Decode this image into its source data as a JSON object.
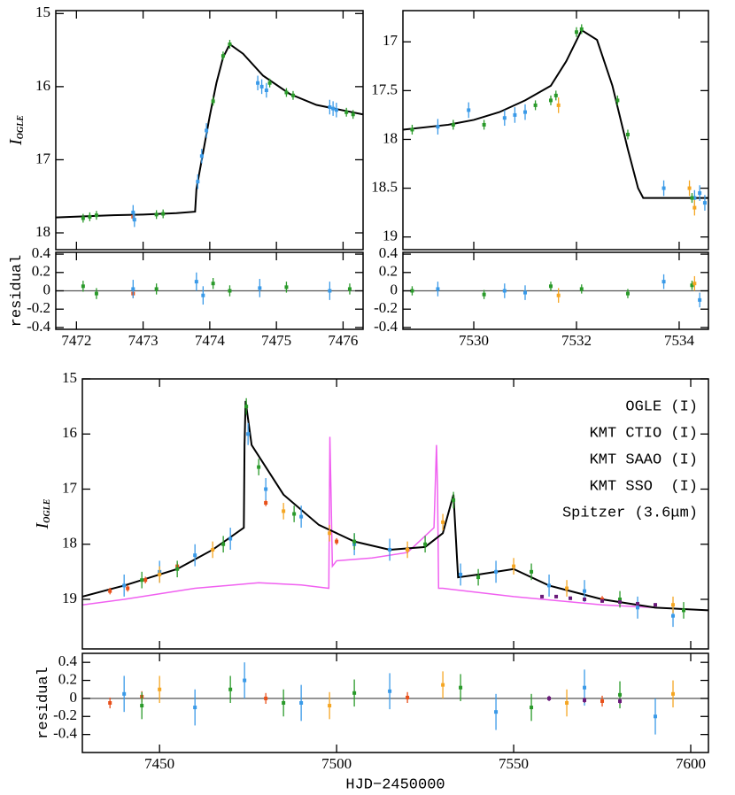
{
  "chart_data": [
    {
      "type": "scatter",
      "xlim": [
        7471.69,
        7476.3
      ],
      "ylim": [
        18.23,
        14.96
      ],
      "xticks": [
        7472,
        7473,
        7474,
        7475,
        7476
      ],
      "yticks": [
        15,
        16,
        17,
        18
      ],
      "xtick_labels": false,
      "ylabel": "I",
      "ylabel_sub": "OGLE",
      "models": [
        {
          "color": "#000000",
          "x": [
            7471.69,
            7472.5,
            7473,
            7473.5,
            7473.78,
            7473.8,
            7473.9,
            7474.0,
            7474.1,
            7474.2,
            7474.3,
            7474.5,
            7474.8,
            7475.2,
            7475.6,
            7476.3
          ],
          "values": [
            17.79,
            17.76,
            17.75,
            17.73,
            17.71,
            17.4,
            16.9,
            16.4,
            15.95,
            15.6,
            15.42,
            15.55,
            15.85,
            16.1,
            16.25,
            16.38
          ]
        }
      ],
      "series": [
        {
          "color": "#e8501a",
          "error": 0.05,
          "x": [
            7472.85
          ],
          "values": [
            17.78
          ]
        },
        {
          "color": "#3a9ae8",
          "error": 0.1,
          "x": [
            7472.85,
            7472.87,
            7473.82,
            7473.88,
            7473.95,
            7474.72,
            7474.78,
            7474.85,
            7475.8,
            7475.85,
            7475.9
          ],
          "values": [
            17.72,
            17.82,
            17.3,
            16.95,
            16.6,
            15.95,
            16.0,
            16.05,
            16.28,
            16.3,
            16.32
          ]
        },
        {
          "color": "#2a9a2a",
          "error": 0.06,
          "x": [
            7472.1,
            7472.2,
            7472.3,
            7473.2,
            7473.3,
            7474.05,
            7474.2,
            7474.3,
            7474.9,
            7475.15,
            7475.25,
            7476.05,
            7476.15
          ],
          "values": [
            17.8,
            17.78,
            17.76,
            17.75,
            17.74,
            16.2,
            15.58,
            15.42,
            15.95,
            16.08,
            16.12,
            16.35,
            16.38
          ]
        }
      ]
    },
    {
      "type": "scatter",
      "xlim": [
        7471.69,
        7476.3
      ],
      "ylim": [
        -0.42,
        0.42
      ],
      "xticks": [
        7472,
        7473,
        7474,
        7475,
        7476
      ],
      "yticks": [
        -0.4,
        -0.2,
        0,
        0.2,
        0.4
      ],
      "xtick_labels": true,
      "ylabel": "residual",
      "hline": 0,
      "series": [
        {
          "color": "#e8501a",
          "error": 0.05,
          "x": [
            7472.85
          ],
          "values": [
            -0.03
          ]
        },
        {
          "color": "#3a9ae8",
          "error": 0.1,
          "x": [
            7472.85,
            7473.8,
            7473.9,
            7474.75,
            7475.8
          ],
          "values": [
            0.02,
            0.1,
            -0.05,
            0.03,
            0.0
          ]
        },
        {
          "color": "#2a9a2a",
          "error": 0.06,
          "x": [
            7472.1,
            7472.3,
            7473.2,
            7474.05,
            7474.3,
            7475.15,
            7476.1
          ],
          "values": [
            0.05,
            -0.03,
            0.02,
            0.08,
            0.0,
            0.04,
            0.02
          ]
        }
      ]
    },
    {
      "type": "scatter",
      "xlim": [
        7528.62,
        7534.57
      ],
      "ylim": [
        19.13,
        16.68
      ],
      "xticks": [
        7530,
        7532,
        7534
      ],
      "yticks": [
        17,
        17.5,
        18,
        18.5,
        19
      ],
      "xtick_labels": false,
      "models": [
        {
          "color": "#000000",
          "x": [
            7528.62,
            7529.5,
            7530,
            7530.5,
            7531,
            7531.5,
            7531.8,
            7532.1,
            7532.4,
            7532.7,
            7533,
            7533.2,
            7533.3,
            7534.57
          ],
          "values": [
            17.9,
            17.85,
            17.8,
            17.72,
            17.6,
            17.45,
            17.2,
            16.88,
            16.98,
            17.45,
            18.1,
            18.5,
            18.6,
            18.6
          ]
        }
      ],
      "series": [
        {
          "color": "#3a9ae8",
          "error": 0.08,
          "x": [
            7529.3,
            7529.9,
            7530.6,
            7530.8,
            7531.0,
            7533.7,
            7534.3,
            7534.4,
            7534.5
          ],
          "values": [
            17.87,
            17.7,
            17.78,
            17.75,
            17.72,
            18.5,
            18.6,
            18.55,
            18.65
          ]
        },
        {
          "color": "#2a9a2a",
          "error": 0.05,
          "x": [
            7528.8,
            7529.6,
            7530.2,
            7531.2,
            7531.5,
            7531.6,
            7532.0,
            7532.1,
            7532.8,
            7533.0,
            7534.25
          ],
          "values": [
            17.9,
            17.85,
            17.85,
            17.65,
            17.6,
            17.55,
            16.9,
            16.87,
            17.6,
            17.95,
            18.6
          ]
        },
        {
          "color": "#f5a623",
          "error": 0.08,
          "x": [
            7531.65,
            7534.2,
            7534.3
          ],
          "values": [
            17.65,
            18.5,
            18.7
          ]
        }
      ]
    },
    {
      "type": "scatter",
      "xlim": [
        7528.62,
        7534.57
      ],
      "ylim": [
        -0.42,
        0.42
      ],
      "xticks": [
        7530,
        7532,
        7534
      ],
      "yticks": [
        -0.4,
        -0.2,
        0,
        0.2,
        0.4
      ],
      "xtick_labels": true,
      "hline": 0,
      "series": [
        {
          "color": "#3a9ae8",
          "error": 0.08,
          "x": [
            7529.3,
            7530.6,
            7531.0,
            7533.7,
            7534.4
          ],
          "values": [
            0.02,
            0.0,
            -0.02,
            0.1,
            -0.1
          ]
        },
        {
          "color": "#2a9a2a",
          "error": 0.05,
          "x": [
            7528.8,
            7530.2,
            7531.5,
            7532.1,
            7533.0,
            7534.25
          ],
          "values": [
            0.0,
            -0.04,
            0.05,
            0.02,
            -0.03,
            0.06
          ]
        },
        {
          "color": "#f5a623",
          "error": 0.08,
          "x": [
            7531.65,
            7534.3
          ],
          "values": [
            -0.05,
            0.08
          ]
        }
      ]
    },
    {
      "type": "scatter",
      "xlim": [
        7428.2,
        7605
      ],
      "ylim": [
        19.9,
        15
      ],
      "xticks": [
        7450,
        7500,
        7550,
        7600
      ],
      "yticks": [
        15,
        16,
        17,
        18,
        19
      ],
      "xtick_labels": false,
      "ylabel": "I",
      "ylabel_sub": "OGLE",
      "legend": "upper right",
      "models": [
        {
          "color": "#f060f0",
          "x": [
            7428.2,
            7440,
            7460,
            7478,
            7490,
            7497.8,
            7498.1,
            7498.4,
            7498.8,
            7500,
            7510,
            7520,
            7527.5,
            7528.2,
            7528.5,
            7528.8,
            7530,
            7550,
            7575,
            7605
          ],
          "values": [
            19.1,
            19.0,
            18.8,
            18.7,
            18.74,
            18.8,
            16.05,
            17.0,
            18.4,
            18.3,
            18.25,
            18.15,
            17.7,
            16.2,
            17.0,
            18.8,
            18.8,
            18.95,
            19.1,
            19.2
          ]
        },
        {
          "color": "#000000",
          "x": [
            7428.2,
            7440,
            7455,
            7465,
            7473.8,
            7474.0,
            7474.3,
            7476,
            7485,
            7495,
            7505,
            7515,
            7525,
            7530,
            7533,
            7534.3,
            7540,
            7550,
            7560,
            7575,
            7590,
            7605
          ],
          "values": [
            18.95,
            18.75,
            18.45,
            18.1,
            17.7,
            16.2,
            15.4,
            16.2,
            17.1,
            17.65,
            17.95,
            18.1,
            18.05,
            17.8,
            17.1,
            18.6,
            18.55,
            18.45,
            18.75,
            19.0,
            19.15,
            19.2
          ]
        }
      ],
      "series": [
        {
          "name": "OGLE (I)",
          "color": "#e8501a",
          "error": 0.06,
          "x": [
            7436,
            7441,
            7446,
            7455,
            7480,
            7500,
            7520,
            7575
          ],
          "values": [
            18.85,
            18.8,
            18.65,
            18.4,
            17.25,
            17.95,
            18.1,
            19.0
          ]
        },
        {
          "name": "KMT CTIO (I)",
          "color": "#3a9ae8",
          "error": 0.2,
          "x": [
            7440,
            7450,
            7460,
            7470,
            7475,
            7480,
            7490,
            7505,
            7515,
            7535,
            7545,
            7560,
            7570,
            7585,
            7595
          ],
          "values": [
            18.75,
            18.5,
            18.2,
            17.9,
            16.0,
            17.0,
            17.5,
            18.0,
            18.1,
            18.55,
            18.5,
            18.75,
            18.85,
            19.15,
            19.3
          ]
        },
        {
          "name": "KMT SAAO (I)",
          "color": "#f5a623",
          "error": 0.15,
          "x": [
            7450,
            7465,
            7485,
            7498,
            7520,
            7530,
            7550,
            7565,
            7595
          ],
          "values": [
            18.55,
            18.1,
            17.4,
            17.8,
            18.1,
            17.6,
            18.4,
            18.8,
            19.1
          ]
        },
        {
          "name": "KMT SSO  (I)",
          "color": "#2a9a2a",
          "error": 0.15,
          "x": [
            7445,
            7455,
            7468,
            7474.5,
            7478,
            7488,
            7505,
            7525,
            7533,
            7540,
            7555,
            7580,
            7598
          ],
          "values": [
            18.65,
            18.45,
            18.0,
            15.5,
            16.6,
            17.45,
            17.95,
            18.0,
            17.2,
            18.6,
            18.5,
            19.0,
            19.2
          ]
        },
        {
          "name": "Spitzer (3.6μm)",
          "color": "#6a1a7a",
          "error": 0.03,
          "x": [
            7558,
            7562,
            7566,
            7570,
            7575,
            7580,
            7585,
            7590
          ],
          "values": [
            18.95,
            18.95,
            18.98,
            19.0,
            19.03,
            19.05,
            19.08,
            19.1
          ]
        }
      ]
    },
    {
      "type": "scatter",
      "xlim": [
        7428.2,
        7605
      ],
      "ylim": [
        -0.6,
        0.5
      ],
      "xticks": [
        7450,
        7500,
        7550,
        7600
      ],
      "yticks": [
        -0.4,
        -0.2,
        0,
        0.2,
        0.4
      ],
      "xtick_labels": true,
      "ylabel": "residual",
      "xlabel": "HJD−2450000",
      "hline": 0,
      "series": [
        {
          "color": "#e8501a",
          "error": 0.06,
          "x": [
            7436,
            7445,
            7480,
            7520,
            7575
          ],
          "values": [
            -0.05,
            0.02,
            0.0,
            0.01,
            -0.03
          ]
        },
        {
          "color": "#3a9ae8",
          "error": 0.2,
          "x": [
            7440,
            7460,
            7474,
            7490,
            7515,
            7545,
            7570,
            7590
          ],
          "values": [
            0.05,
            -0.1,
            0.2,
            -0.05,
            0.08,
            -0.15,
            0.12,
            -0.2
          ]
        },
        {
          "color": "#f5a623",
          "error": 0.15,
          "x": [
            7450,
            7498,
            7530,
            7565,
            7595
          ],
          "values": [
            0.1,
            -0.08,
            0.15,
            -0.05,
            0.05
          ]
        },
        {
          "color": "#2a9a2a",
          "error": 0.15,
          "x": [
            7445,
            7470,
            7485,
            7505,
            7535,
            7555,
            7580
          ],
          "values": [
            -0.08,
            0.1,
            -0.05,
            0.06,
            0.12,
            -0.1,
            0.04
          ]
        },
        {
          "color": "#6a1a7a",
          "error": 0.03,
          "x": [
            7560,
            7570,
            7580
          ],
          "values": [
            0.0,
            -0.02,
            -0.03
          ]
        }
      ]
    }
  ]
}
